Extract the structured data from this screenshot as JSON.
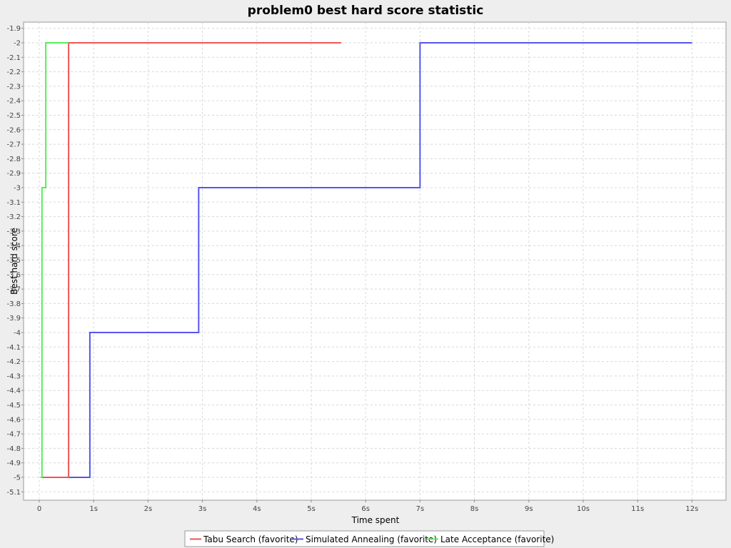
{
  "chart_data": {
    "type": "line",
    "step": true,
    "title": "problem0 best hard score statistic",
    "xlabel": "Time spent",
    "ylabel": "Best hard score",
    "x_unit": "seconds",
    "xlim": [
      0,
      12.55
    ],
    "ylim": [
      -5.15,
      -1.85
    ],
    "x_ticks": [
      {
        "value": 0,
        "label": "0"
      },
      {
        "value": 1,
        "label": "1s"
      },
      {
        "value": 2,
        "label": "2s"
      },
      {
        "value": 3,
        "label": "3s"
      },
      {
        "value": 4,
        "label": "4s"
      },
      {
        "value": 5,
        "label": "5s"
      },
      {
        "value": 6,
        "label": "6s"
      },
      {
        "value": 7,
        "label": "7s"
      },
      {
        "value": 8,
        "label": "8s"
      },
      {
        "value": 9,
        "label": "9s"
      },
      {
        "value": 10,
        "label": "10s"
      },
      {
        "value": 11,
        "label": "11s"
      },
      {
        "value": 12,
        "label": "12s"
      }
    ],
    "y_ticks": [
      {
        "value": -1.9,
        "label": "-1.9"
      },
      {
        "value": -2.0,
        "label": "-2"
      },
      {
        "value": -2.1,
        "label": "-2.1"
      },
      {
        "value": -2.2,
        "label": "-2.2"
      },
      {
        "value": -2.3,
        "label": "-2.3"
      },
      {
        "value": -2.4,
        "label": "-2.4"
      },
      {
        "value": -2.5,
        "label": "-2.5"
      },
      {
        "value": -2.6,
        "label": "-2.6"
      },
      {
        "value": -2.7,
        "label": "-2.7"
      },
      {
        "value": -2.8,
        "label": "-2.8"
      },
      {
        "value": -2.9,
        "label": "-2.9"
      },
      {
        "value": -3.0,
        "label": "-3"
      },
      {
        "value": -3.1,
        "label": "-3.1"
      },
      {
        "value": -3.2,
        "label": "-3.2"
      },
      {
        "value": -3.3,
        "label": "-3.3"
      },
      {
        "value": -3.4,
        "label": "-3.4"
      },
      {
        "value": -3.5,
        "label": "-3.5"
      },
      {
        "value": -3.6,
        "label": "-3.6"
      },
      {
        "value": -3.7,
        "label": "-3.7"
      },
      {
        "value": -3.8,
        "label": "-3.8"
      },
      {
        "value": -3.9,
        "label": "-3.9"
      },
      {
        "value": -4.0,
        "label": "-4"
      },
      {
        "value": -4.1,
        "label": "-4.1"
      },
      {
        "value": -4.2,
        "label": "-4.2"
      },
      {
        "value": -4.3,
        "label": "-4.3"
      },
      {
        "value": -4.4,
        "label": "-4.4"
      },
      {
        "value": -4.5,
        "label": "-4.5"
      },
      {
        "value": -4.6,
        "label": "-4.6"
      },
      {
        "value": -4.7,
        "label": "-4.7"
      },
      {
        "value": -4.8,
        "label": "-4.8"
      },
      {
        "value": -4.9,
        "label": "-4.9"
      },
      {
        "value": -5.0,
        "label": "-5"
      },
      {
        "value": -5.1,
        "label": "-5.1"
      }
    ],
    "grid": true,
    "legend_position": "bottom",
    "series": [
      {
        "name": "Tabu Search (favorite)",
        "color": "#ee5555",
        "points": [
          {
            "x": 0.02,
            "y": -5.0
          },
          {
            "x": 0.54,
            "y": -5.0
          },
          {
            "x": 0.54,
            "y": -2.0
          },
          {
            "x": 5.55,
            "y": -2.0
          }
        ]
      },
      {
        "name": "Simulated Annealing (favorite)",
        "color": "#5555ee",
        "points": [
          {
            "x": 0.02,
            "y": -5.0
          },
          {
            "x": 0.93,
            "y": -5.0
          },
          {
            "x": 0.93,
            "y": -4.0
          },
          {
            "x": 2.93,
            "y": -4.0
          },
          {
            "x": 2.93,
            "y": -3.0
          },
          {
            "x": 7.0,
            "y": -3.0
          },
          {
            "x": 7.0,
            "y": -2.0
          },
          {
            "x": 12.0,
            "y": -2.0
          }
        ]
      },
      {
        "name": "Late Acceptance (favorite)",
        "color": "#55ee55",
        "points": [
          {
            "x": 0.02,
            "y": -5.0
          },
          {
            "x": 0.05,
            "y": -5.0
          },
          {
            "x": 0.05,
            "y": -3.0
          },
          {
            "x": 0.12,
            "y": -3.0
          },
          {
            "x": 0.12,
            "y": -2.0
          },
          {
            "x": 0.54,
            "y": -2.0
          }
        ]
      }
    ]
  }
}
